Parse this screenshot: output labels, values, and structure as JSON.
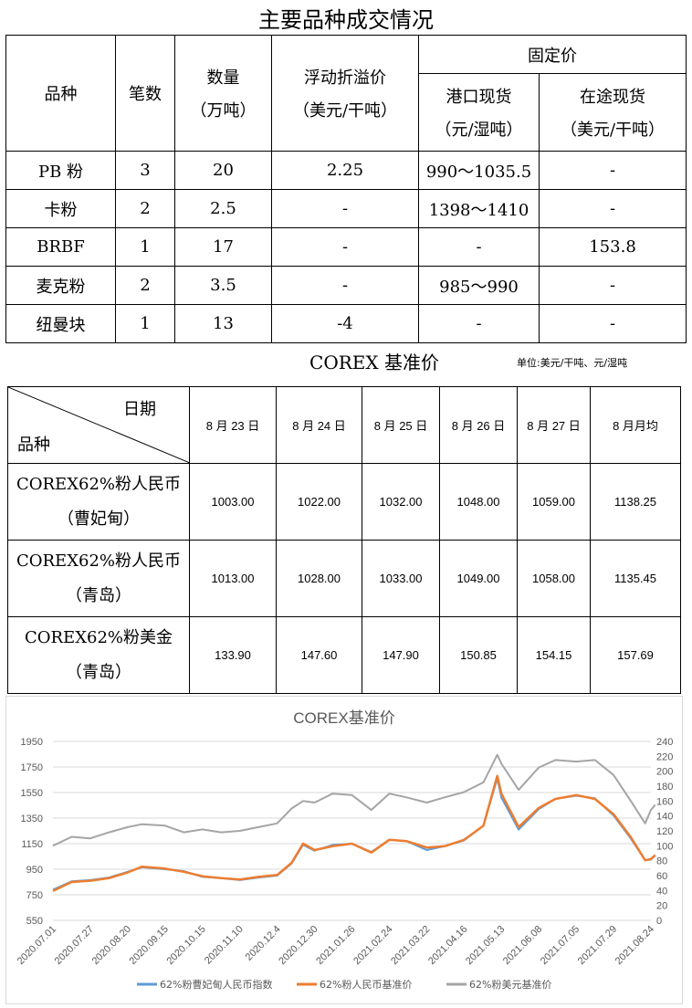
{
  "title": "主要品种成交情况",
  "deals": {
    "headers": {
      "variety": "品种",
      "count": "笔数",
      "qty": "数量",
      "qty_unit": "（万吨）",
      "float": "浮动折溢价",
      "float_unit": "（美元/干吨）",
      "fixed": "固定价",
      "port": "港口现货",
      "port_unit": "（元/湿吨）",
      "transit": "在途现货",
      "transit_unit": "（美元/干吨）"
    },
    "rows": [
      [
        "PB 粉",
        "3",
        "20",
        "2.25",
        "990～1035.5",
        "-"
      ],
      [
        "卡粉",
        "2",
        "2.5",
        "-",
        "1398～1410",
        "-"
      ],
      [
        "BRBF",
        "1",
        "17",
        "-",
        "-",
        "153.8"
      ],
      [
        "麦克粉",
        "2",
        "3.5",
        "-",
        "985～990",
        "-"
      ],
      [
        "纽曼块",
        "1",
        "13",
        "-4",
        "-",
        "-"
      ]
    ]
  },
  "corex": {
    "title": "COREX 基准价",
    "unit": "单位:美元/干吨、元/湿吨",
    "corner_top": "日期",
    "corner_bottom": "品种",
    "columns": [
      "8 月 23 日",
      "8 月 24 日",
      "8 月 25 日",
      "8 月 26 日",
      "8 月 27 日",
      "8 月月均"
    ],
    "rows": [
      {
        "l1": "COREX62%粉人民币",
        "l2": "（曹妃甸）",
        "values": [
          "1003.00",
          "1022.00",
          "1032.00",
          "1048.00",
          "1059.00",
          "1138.25"
        ]
      },
      {
        "l1": "COREX62%粉人民币",
        "l2": "（青岛）",
        "values": [
          "1013.00",
          "1028.00",
          "1033.00",
          "1049.00",
          "1058.00",
          "1135.45"
        ]
      },
      {
        "l1": "COREX62%粉美金",
        "l2": "（青岛）",
        "values": [
          "133.90",
          "147.60",
          "147.90",
          "150.85",
          "154.15",
          "157.69"
        ]
      }
    ]
  },
  "chart_data": {
    "type": "line",
    "title": "COREX基准价",
    "y_left": {
      "range": [
        550,
        1950
      ],
      "ticks": [
        550,
        750,
        950,
        1150,
        1350,
        1550,
        1750,
        1950
      ]
    },
    "y_right": {
      "range": [
        0,
        240
      ],
      "ticks": [
        0,
        20,
        40,
        60,
        80,
        100,
        120,
        140,
        160,
        180,
        200,
        220,
        240
      ]
    },
    "x_ticks": [
      "2020.07.01",
      "2020.07.27",
      "2020.08.20",
      "2020.09.15",
      "2020.10.15",
      "2020.11.10",
      "2020.12.4",
      "2020.12.30",
      "2021.01.26",
      "2021.02.24",
      "2021.03.22",
      "2021.04.16",
      "2021.05.13",
      "2021.06.08",
      "2021.07.05",
      "2021.07.29",
      "2021.08.24"
    ],
    "grid": true,
    "legend": "bottom",
    "x": [
      "2020.07.01",
      "2020.07.14",
      "2020.07.27",
      "2020.08.08",
      "2020.08.20",
      "2020.08.30",
      "2020.09.15",
      "2020.09.30",
      "2020.10.15",
      "2020.10.28",
      "2020.11.10",
      "2020.11.22",
      "2020.12.04",
      "2020.12.14",
      "2020.12.22",
      "2020.12.30",
      "2021.01.12",
      "2021.01.26",
      "2021.02.10",
      "2021.02.24",
      "2021.03.08",
      "2021.03.22",
      "2021.04.03",
      "2021.04.16",
      "2021.04.30",
      "2021.05.10",
      "2021.05.13",
      "2021.05.25",
      "2021.06.08",
      "2021.06.20",
      "2021.07.05",
      "2021.07.17",
      "2021.07.29",
      "2021.08.10",
      "2021.08.20",
      "2021.08.24",
      "2021.08.27"
    ],
    "series": [
      {
        "name": "62%粉曹妃甸人民币指数",
        "axis": "left",
        "color": "#5b9bd5",
        "values": [
          790,
          855,
          865,
          885,
          930,
          965,
          950,
          935,
          890,
          880,
          865,
          885,
          900,
          995,
          1140,
          1095,
          1140,
          1150,
          1085,
          1180,
          1170,
          1100,
          1130,
          1175,
          1290,
          1660,
          1510,
          1260,
          1420,
          1500,
          1525,
          1505,
          1370,
          1190,
          1020,
          1025,
          1058
        ]
      },
      {
        "name": "62%粉人民币基准价",
        "axis": "left",
        "color": "#ed7d31",
        "values": [
          780,
          850,
          860,
          880,
          925,
          970,
          955,
          930,
          895,
          880,
          870,
          890,
          905,
          1000,
          1150,
          1100,
          1130,
          1150,
          1080,
          1180,
          1170,
          1120,
          1130,
          1180,
          1290,
          1680,
          1540,
          1280,
          1430,
          1500,
          1530,
          1500,
          1380,
          1200,
          1020,
          1030,
          1060
        ]
      },
      {
        "name": "62%粉美元基准价",
        "axis": "right",
        "color": "#a5a5a5",
        "values": [
          100,
          112,
          110,
          118,
          125,
          129,
          127,
          118,
          122,
          118,
          120,
          125,
          130,
          150,
          160,
          158,
          170,
          168,
          148,
          170,
          165,
          158,
          165,
          172,
          185,
          222,
          210,
          175,
          205,
          215,
          213,
          215,
          195,
          160,
          130,
          148,
          155
        ]
      }
    ]
  }
}
